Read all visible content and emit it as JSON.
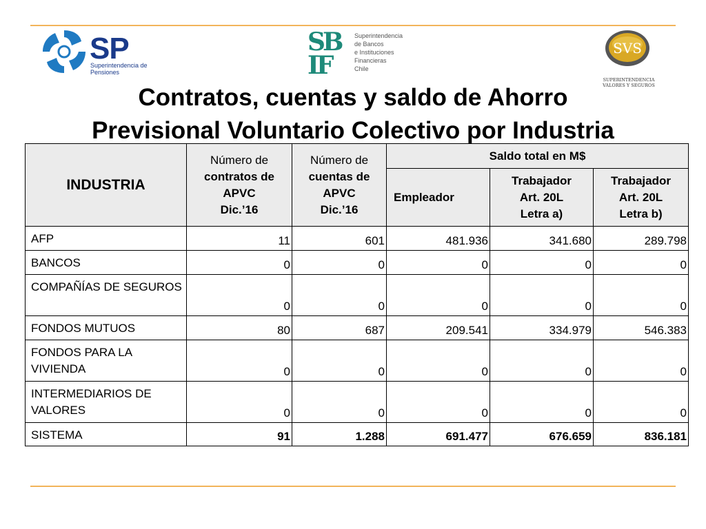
{
  "logos": {
    "sp": {
      "word": "SP",
      "lines": [
        "Superintendencia de",
        "Pensiones"
      ]
    },
    "sbif": {
      "mark": [
        "SB",
        "IF"
      ],
      "lines": [
        "Superintendencia",
        "de Bancos",
        "e Instituciones",
        "Financieras",
        "Chile"
      ]
    },
    "svs": {
      "word": "SVS",
      "lines": [
        "SUPERINTENDENCIA",
        "VALORES Y SEGUROS"
      ]
    }
  },
  "title": {
    "line1": "Contratos, cuentas y saldo de Ahorro",
    "line2": "Previsional Voluntario Colectivo por Industria"
  },
  "table": {
    "headers": {
      "industria": "INDUSTRIA",
      "contratos": [
        "Número de",
        "contratos de",
        "APVC",
        "Dic.’16"
      ],
      "cuentas": [
        "Número de",
        "cuentas de",
        "APVC",
        "Dic.’16"
      ],
      "saldo": "Saldo total en M$",
      "empleador": "Empleador",
      "trab_a": [
        "Trabajador",
        "Art. 20L",
        "Letra a)"
      ],
      "trab_b": [
        "Trabajador",
        "Art. 20L",
        "Letra b)"
      ]
    },
    "rows": [
      {
        "label": "AFP",
        "contratos": "11",
        "cuentas": "601",
        "empleador": "481.936",
        "trab_a": "341.680",
        "trab_b": "289.798"
      },
      {
        "label": "BANCOS",
        "contratos": "0",
        "cuentas": "0",
        "empleador": "0",
        "trab_a": "0",
        "trab_b": "0"
      },
      {
        "label": "COMPAÑÍAS DE SEGUROS",
        "contratos": "0",
        "cuentas": "0",
        "empleador": "0",
        "trab_a": "0",
        "trab_b": "0"
      },
      {
        "label": "FONDOS MUTUOS",
        "contratos": "80",
        "cuentas": "687",
        "empleador": "209.541",
        "trab_a": "334.979",
        "trab_b": "546.383"
      },
      {
        "label": "FONDOS PARA LA VIVIENDA",
        "contratos": "0",
        "cuentas": "0",
        "empleador": "0",
        "trab_a": "0",
        "trab_b": "0"
      },
      {
        "label": "INTERMEDIARIOS DE VALORES",
        "contratos": "0",
        "cuentas": "0",
        "empleador": "0",
        "trab_a": "0",
        "trab_b": "0"
      },
      {
        "label": "SISTEMA",
        "contratos": "91",
        "cuentas": "1.288",
        "empleador": "691.477",
        "trab_a": "676.659",
        "trab_b": "836.181"
      }
    ]
  }
}
